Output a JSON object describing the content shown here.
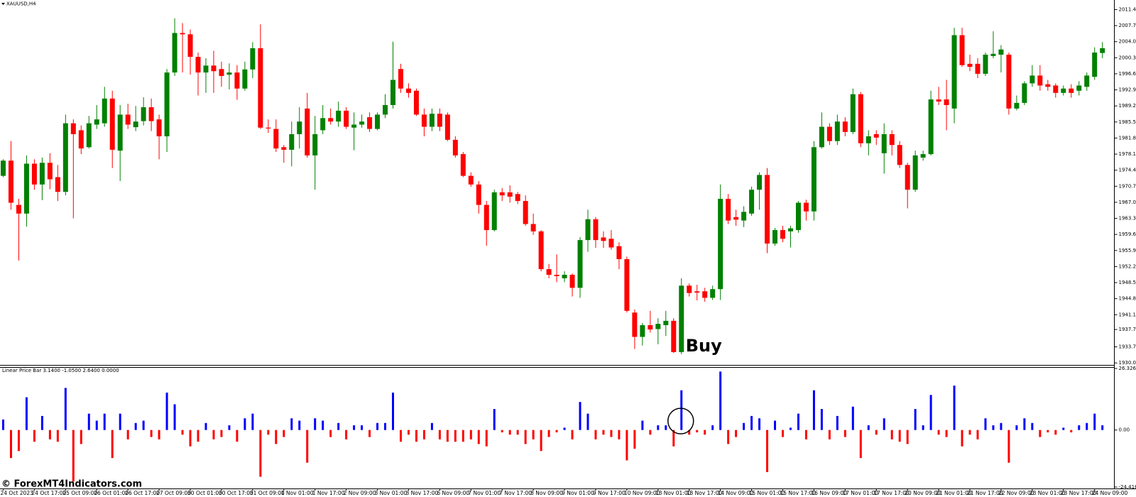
{
  "chart_data": [
    {
      "type": "candlestick",
      "title": "XAUUSD,H4",
      "annotation": "Buy",
      "up_color": "#008000",
      "down_color": "#ff0000",
      "categories": [
        "24 Oct 2023",
        null,
        null,
        null,
        "24 Oct 17:00",
        null,
        null,
        null,
        "25 Oct 09:00",
        null,
        null,
        null,
        "26 Oct 01:00",
        null,
        null,
        null,
        "26 Oct 17:00",
        null,
        null,
        null,
        "27 Oct 09:00",
        null,
        null,
        null,
        "30 Oct 01:00",
        null,
        null,
        null,
        "30 Oct 17:00",
        null,
        null,
        null,
        "31 Oct 09:00",
        null,
        null,
        null,
        "1 Nov 01:00",
        null,
        null,
        null,
        "1 Nov 17:00",
        null,
        null,
        null,
        "2 Nov 09:00",
        null,
        null,
        null,
        "3 Nov 01:00",
        null,
        null,
        null,
        "3 Nov 17:00",
        null,
        null,
        null,
        "6 Nov 09:00",
        null,
        null,
        null,
        "7 Nov 01:00",
        null,
        null,
        null,
        "7 Nov 17:00",
        null,
        null,
        null,
        "8 Nov 09:00",
        null,
        null,
        null,
        "9 Nov 01:00",
        null,
        null,
        null,
        "9 Nov 17:00",
        null,
        null,
        null,
        "10 Nov 09:00",
        null,
        null,
        null,
        "13 Nov 01:00",
        null,
        null,
        null,
        "13 Nov 17:00",
        null,
        null,
        null,
        "14 Nov 09:00",
        null,
        null,
        null,
        "15 Nov 01:00",
        null,
        null,
        null,
        "15 Nov 17:00",
        null,
        null,
        null,
        "16 Nov 09:00",
        null,
        null,
        null,
        "17 Nov 01:00",
        null,
        null,
        null,
        "17 Nov 17:00",
        null,
        null,
        null,
        "20 Nov 09:00",
        null,
        null,
        null,
        "21 Nov 01:00",
        null,
        null,
        null,
        "21 Nov 17:00",
        null,
        null,
        null,
        "22 Nov 09:00",
        null,
        null,
        null,
        "23 Nov 01:00",
        null,
        null,
        null,
        "23 Nov 17:00",
        null,
        null,
        null,
        "24 Nov 09:00",
        null
      ],
      "open": [
        1973.1,
        1976.6,
        1966.4,
        1964.4,
        1975.9,
        1971.1,
        1976.1,
        1972.8,
        1969.4,
        1985.2,
        1983.6,
        1979.7,
        1984.9,
        1985.2,
        1990.9,
        1978.9,
        1987.2,
        1984.3,
        1985.7,
        1988.9,
        1986.1,
        1982.2,
        1996.9,
        2006.0,
        2005.7,
        2000.5,
        1996.9,
        1998.5,
        1997.7,
        1996.4,
        1996.9,
        1993.2,
        1997.6,
        2002.5,
        1984.2,
        1983.9,
        1979.7,
        1979.1,
        1982.7,
        1988.6,
        1977.8,
        1983.6,
        1986.4,
        1985.6,
        1988.1,
        1984.2,
        1984.9,
        1986.6,
        1983.9,
        1987.2,
        1989.4,
        1997.7,
        1993.2,
        1992.7,
        1987.2,
        1984.4,
        1987.4,
        1987.2,
        1981.4,
        1978.1,
        1973.1,
        1971.1,
        1966.4,
        1960.6,
        1969.3,
        1969.3,
        1968.9,
        1967.3,
        1962.0,
        1960.3,
        1951.6,
        1950.3,
        1949.5,
        1950.3,
        1947.3,
        1958.3,
        1963.1,
        1958.9,
        1958.6,
        1956.9,
        1953.9,
        1941.6,
        1936.0,
        1938.7,
        1937.8,
        1938.7,
        1939.7,
        1932.5,
        1947.8,
        1946.5,
        1946.5,
        1945.0,
        1947.0,
        1967.8,
        1963.6,
        1962.8,
        1964.4,
        1969.9,
        1973.3,
        1957.5,
        1960.6,
        1960.3,
        1960.6,
        1966.9,
        1964.9,
        1979.7,
        1984.4,
        1981.1,
        1985.6,
        1983.2,
        1991.9,
        1980.6,
        1982.7,
        1978.3,
        1982.7,
        1980.2,
        1975.6,
        1969.9,
        1977.3,
        1978.1,
        1990.7,
        1990.7,
        1988.6,
        2005.5,
        1998.9,
        1998.9,
        1996.6,
        2000.7,
        2001.0,
        2001.0,
        1988.6,
        1989.9,
        1994.4,
        1996.2,
        1994.2,
        1993.9,
        1992.2,
        1993.2,
        1992.7,
        1993.6,
        1995.9,
        2001.4
      ],
      "high": [
        1976.9,
        1981.1,
        1967.8,
        1977.8,
        1976.9,
        1977.3,
        1978.3,
        1975.6,
        1987.2,
        1986.1,
        1984.7,
        1986.9,
        1989.4,
        1993.6,
        1992.7,
        1989.4,
        1989.7,
        1989.2,
        1991.2,
        1990.9,
        1987.2,
        1997.7,
        2009.4,
        2008.3,
        2006.8,
        2001.5,
        2000.2,
        2001.9,
        1999.4,
        1999.0,
        1998.6,
        1999.4,
        2003.9,
        2008.0,
        1986.1,
        1986.1,
        1980.2,
        1985.6,
        1988.9,
        1992.2,
        1986.9,
        1989.4,
        1988.6,
        1990.2,
        1988.9,
        1987.7,
        1987.2,
        1987.7,
        1987.7,
        1991.9,
        2004.0,
        1998.9,
        1994.4,
        1993.2,
        1988.6,
        1988.6,
        1988.6,
        1987.7,
        1982.2,
        1978.6,
        1973.9,
        1971.9,
        1967.3,
        1969.9,
        1970.3,
        1970.9,
        1969.4,
        1968.6,
        1964.4,
        1960.6,
        1952.8,
        1955.0,
        1951.1,
        1950.6,
        1959.0,
        1965.3,
        1963.6,
        1960.3,
        1960.6,
        1957.8,
        1954.5,
        1942.3,
        1939.2,
        1942.0,
        1940.3,
        1942.0,
        1940.3,
        1949.5,
        1948.3,
        1948.0,
        1947.3,
        1947.8,
        1971.1,
        1968.9,
        1965.3,
        1966.1,
        1970.6,
        1973.9,
        1974.9,
        1961.1,
        1961.6,
        1961.6,
        1967.3,
        1967.6,
        1981.1,
        1987.7,
        1985.2,
        1987.2,
        1986.6,
        1993.2,
        1992.4,
        1983.6,
        1983.6,
        1985.2,
        1983.6,
        1981.1,
        1976.1,
        1978.9,
        1978.9,
        1992.7,
        1993.6,
        1995.2,
        2007.2,
        2007.2,
        2001.0,
        2000.2,
        2001.5,
        2006.4,
        2003.2,
        2001.5,
        1991.6,
        1994.9,
        1998.6,
        1998.6,
        1995.2,
        1994.4,
        1993.9,
        1994.2,
        1994.9,
        1996.9,
        2002.7,
        2003.9
      ],
      "low": [
        1972.8,
        1965.3,
        1953.6,
        1961.4,
        1969.9,
        1967.5,
        1970.0,
        1967.3,
        1968.6,
        1963.3,
        1978.1,
        1979.4,
        1983.9,
        1984.4,
        1974.9,
        1971.9,
        1983.9,
        1983.4,
        1984.7,
        1983.4,
        1976.9,
        1978.6,
        1996.1,
        1996.9,
        1996.4,
        1991.6,
        1992.2,
        1992.2,
        1993.6,
        1993.0,
        1990.6,
        1992.7,
        1995.6,
        1983.9,
        1983.0,
        1978.6,
        1976.1,
        1975.3,
        1979.4,
        1977.3,
        1969.9,
        1982.7,
        1984.9,
        1984.4,
        1983.9,
        1979.0,
        1984.2,
        1983.2,
        1983.6,
        1986.4,
        1988.6,
        1992.2,
        1991.1,
        1986.9,
        1982.2,
        1983.4,
        1983.4,
        1981.1,
        1977.3,
        1972.8,
        1970.6,
        1964.4,
        1957.0,
        1960.3,
        1967.3,
        1966.9,
        1966.6,
        1961.6,
        1959.5,
        1951.1,
        1949.5,
        1948.6,
        1948.6,
        1945.3,
        1945.0,
        1955.6,
        1956.5,
        1956.5,
        1956.1,
        1951.6,
        1941.6,
        1933.2,
        1934.0,
        1937.0,
        1934.3,
        1936.2,
        1932.3,
        1932.0,
        1945.3,
        1944.4,
        1944.1,
        1944.5,
        1944.5,
        1962.0,
        1961.6,
        1961.3,
        1963.9,
        1965.3,
        1955.3,
        1957.0,
        1957.8,
        1956.6,
        1960.0,
        1962.8,
        1962.8,
        1979.4,
        1980.2,
        1980.2,
        1982.2,
        1982.7,
        1979.7,
        1977.8,
        1980.2,
        1973.6,
        1977.8,
        1974.9,
        1965.6,
        1969.4,
        1976.6,
        1977.8,
        1989.4,
        1983.6,
        1985.2,
        1998.2,
        1997.2,
        1995.6,
        1996.1,
        2000.2,
        1996.9,
        1987.2,
        1988.2,
        1989.4,
        1993.6,
        1992.7,
        1992.7,
        1991.1,
        1991.6,
        1991.1,
        1991.6,
        1992.7,
        1995.2,
        2000.2
      ],
      "close": [
        1976.6,
        1966.9,
        1964.4,
        1975.9,
        1971.1,
        1976.1,
        1972.3,
        1969.4,
        1985.2,
        1982.7,
        1979.4,
        1985.2,
        1986.1,
        1990.9,
        1979.1,
        1987.2,
        1984.9,
        1985.6,
        1988.9,
        1985.7,
        1982.2,
        1996.9,
        2006.0,
        2005.7,
        2000.5,
        1996.9,
        1998.5,
        1997.2,
        1996.1,
        1996.9,
        1993.2,
        1997.6,
        2002.5,
        1984.2,
        1984.0,
        1979.4,
        1979.1,
        1982.7,
        1985.6,
        1977.8,
        1982.7,
        1986.4,
        1985.6,
        1988.1,
        1984.4,
        1984.9,
        1985.6,
        1983.9,
        1987.2,
        1989.4,
        1995.2,
        1993.2,
        1992.2,
        1987.2,
        1984.4,
        1987.4,
        1984.4,
        1981.4,
        1977.8,
        1973.1,
        1971.1,
        1966.4,
        1960.6,
        1969.3,
        1968.6,
        1968.3,
        1967.3,
        1962.0,
        1960.3,
        1951.6,
        1950.3,
        1950.0,
        1950.3,
        1947.3,
        1958.3,
        1963.1,
        1958.3,
        1958.1,
        1956.6,
        1953.9,
        1942.0,
        1936.0,
        1938.7,
        1937.7,
        1939.0,
        1939.7,
        1932.5,
        1947.8,
        1946.1,
        1946.2,
        1945.0,
        1947.0,
        1967.8,
        1962.8,
        1963.0,
        1964.8,
        1969.9,
        1973.3,
        1957.5,
        1960.6,
        1958.6,
        1961.0,
        1966.9,
        1964.9,
        1979.7,
        1984.4,
        1981.1,
        1985.6,
        1983.2,
        1991.9,
        1980.6,
        1982.2,
        1981.9,
        1982.7,
        1980.2,
        1975.6,
        1969.9,
        1977.8,
        1978.1,
        1990.7,
        1990.2,
        1989.4,
        2005.5,
        1998.6,
        1998.2,
        1996.6,
        2001.0,
        2001.2,
        2002.2,
        1988.6,
        1989.9,
        1994.4,
        1996.2,
        1993.9,
        1993.6,
        1992.2,
        1993.2,
        1992.2,
        1993.9,
        1996.2,
        2001.5,
        2002.5
      ],
      "ylim": [
        1929.7,
        2013.6
      ],
      "yticks": [
        {
          "value": 2011.4,
          "label": "2011.40"
        },
        {
          "value": 2007.7,
          "label": "2007.70"
        },
        {
          "value": 2004.0,
          "label": "2004.00"
        },
        {
          "value": 2000.3,
          "label": "2000.30"
        },
        {
          "value": 1996.6,
          "label": "1996.60"
        },
        {
          "value": 1992.9,
          "label": "1992.90"
        },
        {
          "value": 1989.2,
          "label": "1989.20"
        },
        {
          "value": 1985.5,
          "label": "1985.50"
        },
        {
          "value": 1981.8,
          "label": "1981.80"
        },
        {
          "value": 1978.1,
          "label": "1978.10"
        },
        {
          "value": 1974.4,
          "label": "1974.40"
        },
        {
          "value": 1970.7,
          "label": "1970.70"
        },
        {
          "value": 1967.0,
          "label": "1967.00"
        },
        {
          "value": 1963.3,
          "label": "1963.30"
        },
        {
          "value": 1959.6,
          "label": "1959.60"
        },
        {
          "value": 1955.9,
          "label": "1955.90"
        },
        {
          "value": 1952.2,
          "label": "1952.20"
        },
        {
          "value": 1948.5,
          "label": "1948.50"
        },
        {
          "value": 1944.8,
          "label": "1944.80"
        },
        {
          "value": 1941.1,
          "label": "1941.10"
        },
        {
          "value": 1937.7,
          "label": "1937.70"
        },
        {
          "value": 1933.7,
          "label": "1933.70"
        },
        {
          "value": 1930.0,
          "label": "1930.00"
        }
      ]
    },
    {
      "type": "bar",
      "title": "Linear Price Bar 3.1400 -1.0500 2.6400 0.0000",
      "up_color": "#0000ff",
      "down_color": "#ff0000",
      "values": [
        4.5,
        -12,
        -9,
        14,
        -5,
        6,
        -4,
        -5,
        18,
        -22,
        -6,
        7,
        4,
        7,
        -12,
        7,
        -4,
        3,
        4,
        -3,
        -4,
        16,
        11,
        -2,
        -7,
        -5,
        3,
        -4,
        -3,
        2,
        -5,
        5,
        7,
        -20,
        -2,
        -6,
        -3,
        5,
        4,
        -14,
        5,
        4,
        -3,
        3,
        -4,
        2,
        2,
        -3,
        3,
        3,
        16,
        -5,
        -2,
        -5,
        -4,
        3,
        -4,
        -5,
        -5,
        -5,
        -4,
        -6,
        -7,
        9,
        -1,
        -2,
        -2,
        -6,
        -4,
        -9,
        -3,
        -1,
        1,
        -4,
        12,
        7,
        -4,
        -2,
        -3,
        -4,
        -13,
        -8,
        4,
        -2,
        2,
        2,
        -7,
        17,
        -2,
        -1,
        -2,
        2,
        25,
        -6,
        -3,
        3,
        6,
        5,
        -18,
        4,
        -3,
        1,
        7,
        -4,
        17,
        9,
        -4,
        6,
        -3,
        10,
        -12,
        2,
        -2,
        5,
        -4,
        -5,
        -6,
        9,
        2,
        15,
        -2,
        -3,
        19,
        -7,
        -2,
        -4,
        5,
        2,
        3,
        -14,
        2,
        5,
        3,
        -3,
        -1,
        -2,
        1,
        -1,
        2,
        3,
        7,
        2
      ],
      "ylim": [
        -24.4165,
        26.3265
      ],
      "yticks": [
        26.3265,
        {
          "value": 0,
          "label": "0.00"
        },
        -24.4165
      ]
    }
  ],
  "watermark": "© ForexMT4Indicators.com"
}
